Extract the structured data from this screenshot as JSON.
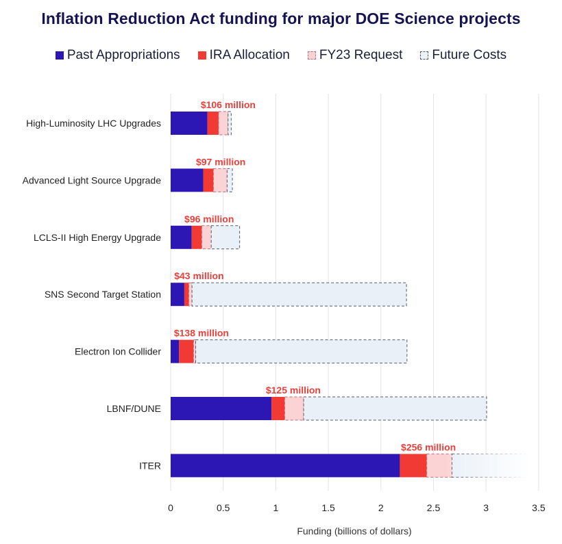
{
  "chart_data": {
    "type": "bar",
    "orientation": "horizontal",
    "stacked": true,
    "title": "Inflation Reduction Act funding for major DOE Science projects",
    "xlabel": "Funding (billions of dollars)",
    "ylabel": "",
    "xlim": [
      0,
      3.5
    ],
    "xticks": [
      0,
      0.5,
      1,
      1.5,
      2,
      2.5,
      3,
      3.5
    ],
    "xtick_labels": [
      "0",
      "0.5",
      "1",
      "1.5",
      "2",
      "2.5",
      "3",
      "3.5"
    ],
    "grid": "vertical",
    "legend_position": "top-center",
    "categories": [
      "High-Luminosity LHC Upgrades",
      "Advanced Light Source Upgrade",
      "LCLS-II High Energy Upgrade",
      "SNS Second Target Station",
      "Electron Ion Collider",
      "LBNF/DUNE",
      "ITER"
    ],
    "series": [
      {
        "name": "Past Appropriations",
        "color": "#2c17b5",
        "style": "solid",
        "values": [
          0.35,
          0.31,
          0.2,
          0.13,
          0.08,
          0.96,
          2.18
        ]
      },
      {
        "name": "IRA Allocation",
        "color": "#f23a35",
        "style": "solid",
        "values": [
          0.106,
          0.097,
          0.096,
          0.043,
          0.138,
          0.125,
          0.256
        ]
      },
      {
        "name": "FY23 Request",
        "color": "#fcd3d5",
        "style": "dashed",
        "values": [
          0.09,
          0.13,
          0.09,
          0.03,
          0.02,
          0.18,
          0.24
        ]
      },
      {
        "name": "Future Costs",
        "color": "#e9f0f8",
        "style": "dashed",
        "values": [
          0.03,
          0.05,
          0.27,
          2.04,
          2.01,
          1.74,
          0.72
        ]
      }
    ],
    "annotations": [
      "$106 million",
      "$97 million",
      "$96 million",
      "$43 million",
      "$138 million",
      "$125 million",
      "$256 million"
    ],
    "annotation_color": "#e8403a"
  }
}
